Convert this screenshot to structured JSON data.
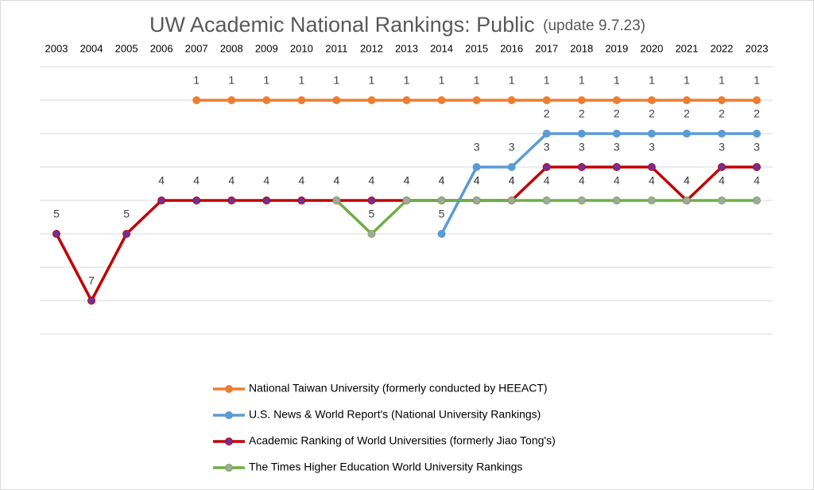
{
  "chart_data": {
    "type": "line",
    "title": "UW Academic National Rankings: Public",
    "subtitle": "(update 9.7.23)",
    "categories": [
      "2003",
      "2004",
      "2005",
      "2006",
      "2007",
      "2008",
      "2009",
      "2010",
      "2011",
      "2012",
      "2013",
      "2014",
      "2015",
      "2016",
      "2017",
      "2018",
      "2019",
      "2020",
      "2021",
      "2022",
      "2023"
    ],
    "ylim": [
      0,
      8
    ],
    "y_inverted": true,
    "yticks": [
      0,
      1,
      2,
      3,
      4,
      5,
      6,
      7,
      8
    ],
    "grid": true,
    "data_labels": true,
    "legend": "bottom",
    "series": [
      {
        "name": "National Taiwan University (formerly conducted by HEEACT)",
        "color": "#ed7d31",
        "marker_color": "#ed7d31",
        "values": [
          null,
          null,
          null,
          null,
          1,
          1,
          1,
          1,
          1,
          1,
          1,
          1,
          1,
          1,
          1,
          1,
          1,
          1,
          1,
          1,
          1
        ]
      },
      {
        "name": "U.S. News & World Report's (National University Rankings)",
        "color": "#5b9bd5",
        "marker_color": "#5b9bd5",
        "values": [
          null,
          null,
          null,
          null,
          null,
          null,
          null,
          null,
          null,
          null,
          null,
          5,
          3,
          3,
          2,
          2,
          2,
          2,
          2,
          2,
          2
        ]
      },
      {
        "name": "Academic Ranking of World Universities (formerly Jiao Tong's)",
        "color": "#c00000",
        "marker_color": "#70309a",
        "values": [
          5,
          7,
          5,
          4,
          4,
          4,
          4,
          4,
          4,
          4,
          4,
          4,
          4,
          4,
          3,
          3,
          3,
          3,
          4,
          3,
          3
        ]
      },
      {
        "name": "The Times Higher Education World University Rankings",
        "color": "#70ad47",
        "marker_color": "#a5a5a5",
        "values": [
          null,
          null,
          null,
          null,
          null,
          null,
          null,
          null,
          4,
          5,
          4,
          4,
          4,
          4,
          4,
          4,
          4,
          4,
          4,
          4,
          4
        ]
      }
    ]
  }
}
